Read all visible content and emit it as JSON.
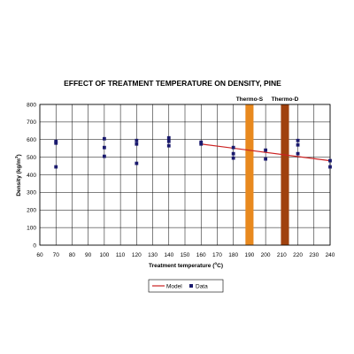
{
  "chart_data": {
    "type": "scatter",
    "title": "EFFECT OF TREATMENT TEMPERATURE ON DENSITY, PINE",
    "xlabel": "Treatment temperature (",
    "xlabel_sup": "o",
    "xlabel_unit": "C)",
    "ylabel": "Density (kg/m",
    "ylabel_sup": "3",
    "ylabel_end": ")",
    "xlim": [
      60,
      240
    ],
    "ylim": [
      0,
      800
    ],
    "x_ticks": [
      60,
      70,
      80,
      90,
      100,
      110,
      120,
      130,
      140,
      150,
      160,
      170,
      180,
      190,
      200,
      210,
      220,
      230,
      240
    ],
    "y_ticks": [
      0,
      100,
      200,
      300,
      400,
      500,
      600,
      700,
      800
    ],
    "grid": true,
    "legend": "bottom",
    "series": [
      {
        "name": "Model",
        "kind": "line",
        "color": "#cc2222",
        "points": [
          [
            160,
            575
          ],
          [
            240,
            480
          ]
        ]
      },
      {
        "name": "Data",
        "kind": "scatter",
        "color": "#1a1a6e",
        "points": [
          [
            70,
            590
          ],
          [
            70,
            580
          ],
          [
            70,
            445
          ],
          [
            100,
            605
          ],
          [
            100,
            555
          ],
          [
            100,
            505
          ],
          [
            120,
            595
          ],
          [
            120,
            575
          ],
          [
            120,
            465
          ],
          [
            140,
            610
          ],
          [
            140,
            590
          ],
          [
            140,
            565
          ],
          [
            160,
            585
          ],
          [
            160,
            575
          ],
          [
            180,
            555
          ],
          [
            180,
            520
          ],
          [
            180,
            495
          ],
          [
            200,
            540
          ],
          [
            200,
            490
          ],
          [
            220,
            595
          ],
          [
            220,
            570
          ],
          [
            220,
            520
          ],
          [
            240,
            480
          ],
          [
            240,
            445
          ]
        ]
      }
    ],
    "bands": [
      {
        "label": "Thermo-S",
        "x": 190,
        "width": 5,
        "color": "#e8891e"
      },
      {
        "label": "Thermo-D",
        "x": 212,
        "width": 5,
        "color": "#a0410e"
      }
    ]
  }
}
